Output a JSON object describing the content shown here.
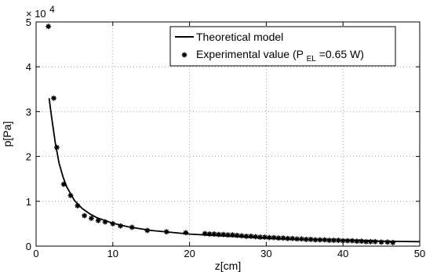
{
  "chart_data": {
    "type": "scatter",
    "xlabel": "z[cm]",
    "ylabel": "p[Pa]",
    "y_multiplier": {
      "base": "× 10",
      "exponent": "4"
    },
    "xlim": [
      0,
      50
    ],
    "ylim": [
      0,
      5
    ],
    "xticks": [
      0,
      10,
      20,
      30,
      40,
      50
    ],
    "yticks": [
      0,
      1,
      2,
      3,
      4,
      5
    ],
    "grid": true,
    "legend_position": "top-right",
    "series": [
      {
        "name": "Theoretical model",
        "kind": "line",
        "color": "#000000",
        "x": [
          1.7,
          2.0,
          2.5,
          3.0,
          3.5,
          4.0,
          5.0,
          6.0,
          7.0,
          8.0,
          10.0,
          12.0,
          15.0,
          20.0,
          25.0,
          30.0,
          35.0,
          40.0,
          45.0,
          50.0
        ],
        "y": [
          3.3,
          2.9,
          2.3,
          1.85,
          1.55,
          1.32,
          1.02,
          0.84,
          0.72,
          0.63,
          0.51,
          0.43,
          0.35,
          0.27,
          0.22,
          0.18,
          0.15,
          0.13,
          0.11,
          0.1
        ]
      },
      {
        "name": "Experimental value (P",
        "name_subscript": "EL",
        "name_suffix": "=0.65 W)",
        "kind": "points",
        "color": "#000000",
        "x": [
          1.6,
          2.3,
          2.7,
          3.6,
          4.5,
          5.4,
          6.3,
          7.2,
          8.1,
          9.0,
          10.0,
          11.0,
          12.5,
          14.5,
          17.0,
          19.5,
          22.0,
          22.6,
          23.2,
          23.8,
          24.4,
          25.0,
          25.6,
          26.2,
          26.8,
          27.4,
          28.0,
          28.6,
          29.2,
          29.8,
          30.4,
          31.0,
          31.6,
          32.2,
          32.8,
          33.4,
          34.0,
          34.6,
          35.2,
          35.8,
          36.4,
          37.0,
          37.6,
          38.2,
          38.8,
          39.4,
          40.0,
          40.6,
          41.2,
          41.8,
          42.4,
          43.0,
          43.6,
          44.2,
          45.0,
          45.8,
          46.5
        ],
        "y": [
          4.9,
          3.3,
          2.2,
          1.38,
          1.13,
          0.9,
          0.68,
          0.62,
          0.57,
          0.54,
          0.5,
          0.45,
          0.42,
          0.35,
          0.32,
          0.3,
          0.28,
          0.27,
          0.27,
          0.26,
          0.26,
          0.25,
          0.25,
          0.24,
          0.23,
          0.22,
          0.22,
          0.21,
          0.2,
          0.2,
          0.19,
          0.19,
          0.18,
          0.18,
          0.17,
          0.17,
          0.16,
          0.16,
          0.15,
          0.15,
          0.14,
          0.14,
          0.14,
          0.13,
          0.13,
          0.13,
          0.12,
          0.12,
          0.12,
          0.11,
          0.11,
          0.1,
          0.1,
          0.1,
          0.09,
          0.09,
          0.08
        ]
      }
    ]
  }
}
